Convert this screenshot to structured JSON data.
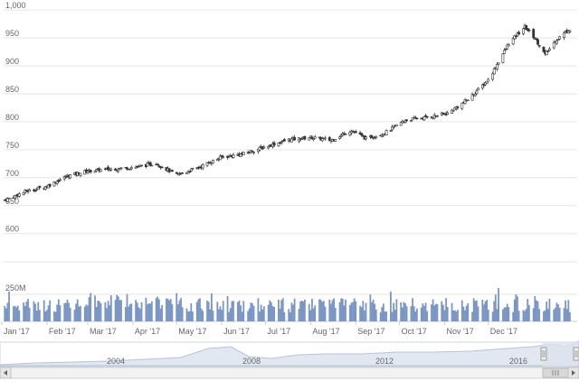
{
  "chart_data": {
    "type": "candlestick",
    "y_axis": {
      "ticks": [
        600,
        650,
        700,
        750,
        800,
        850,
        900,
        950,
        1000
      ],
      "tick_labels": [
        "600",
        "650",
        "700",
        "750",
        "800",
        "850",
        "900",
        "950",
        "1,000"
      ],
      "ylim": [
        585,
        1005
      ],
      "grid": true
    },
    "x_axis": {
      "ticks": [
        "Jan '17",
        "Feb '17",
        "Mar '17",
        "Apr '17",
        "May '17",
        "Jun '17",
        "Jul '17",
        "Aug '17",
        "Sep '17",
        "Oct '17",
        "Nov '17",
        "Dec '17"
      ]
    },
    "price_series": {
      "points": [
        {
          "date": "2017-01-03",
          "close": 660
        },
        {
          "date": "2017-01-17",
          "close": 675
        },
        {
          "date": "2017-02-01",
          "close": 685
        },
        {
          "date": "2017-02-15",
          "close": 703
        },
        {
          "date": "2017-03-01",
          "close": 712
        },
        {
          "date": "2017-03-15",
          "close": 715
        },
        {
          "date": "2017-04-03",
          "close": 719
        },
        {
          "date": "2017-04-17",
          "close": 726
        },
        {
          "date": "2017-05-01",
          "close": 705
        },
        {
          "date": "2017-05-15",
          "close": 717
        },
        {
          "date": "2017-06-01",
          "close": 737
        },
        {
          "date": "2017-06-15",
          "close": 742
        },
        {
          "date": "2017-07-03",
          "close": 757
        },
        {
          "date": "2017-07-17",
          "close": 768
        },
        {
          "date": "2017-08-01",
          "close": 772
        },
        {
          "date": "2017-08-15",
          "close": 767
        },
        {
          "date": "2017-08-29",
          "close": 785
        },
        {
          "date": "2017-09-08",
          "close": 770
        },
        {
          "date": "2017-09-21",
          "close": 780
        },
        {
          "date": "2017-10-05",
          "close": 803
        },
        {
          "date": "2017-10-20",
          "close": 808
        },
        {
          "date": "2017-11-03",
          "close": 815
        },
        {
          "date": "2017-11-17",
          "close": 840
        },
        {
          "date": "2017-12-01",
          "close": 875
        },
        {
          "date": "2017-12-15",
          "close": 940
        },
        {
          "date": "2017-12-26",
          "close": 970
        },
        {
          "date": "2018-01-02",
          "close": 950
        },
        {
          "date": "2018-01-09",
          "close": 920
        },
        {
          "date": "2018-01-16",
          "close": 945
        },
        {
          "date": "2018-01-25",
          "close": 965
        }
      ]
    },
    "volume_series": {
      "label": "250M",
      "reference_value": 250000000
    },
    "navigator": {
      "ticks": [
        "2004",
        "2008",
        "2012",
        "2016"
      ]
    },
    "colors": {
      "up": "#ffffff",
      "down": "#333333",
      "volume": "#7b96c4",
      "grid": "#e6e6e6",
      "navigator_fill": "#e2e8f2",
      "navigator_mask": "#dce3ee"
    }
  }
}
